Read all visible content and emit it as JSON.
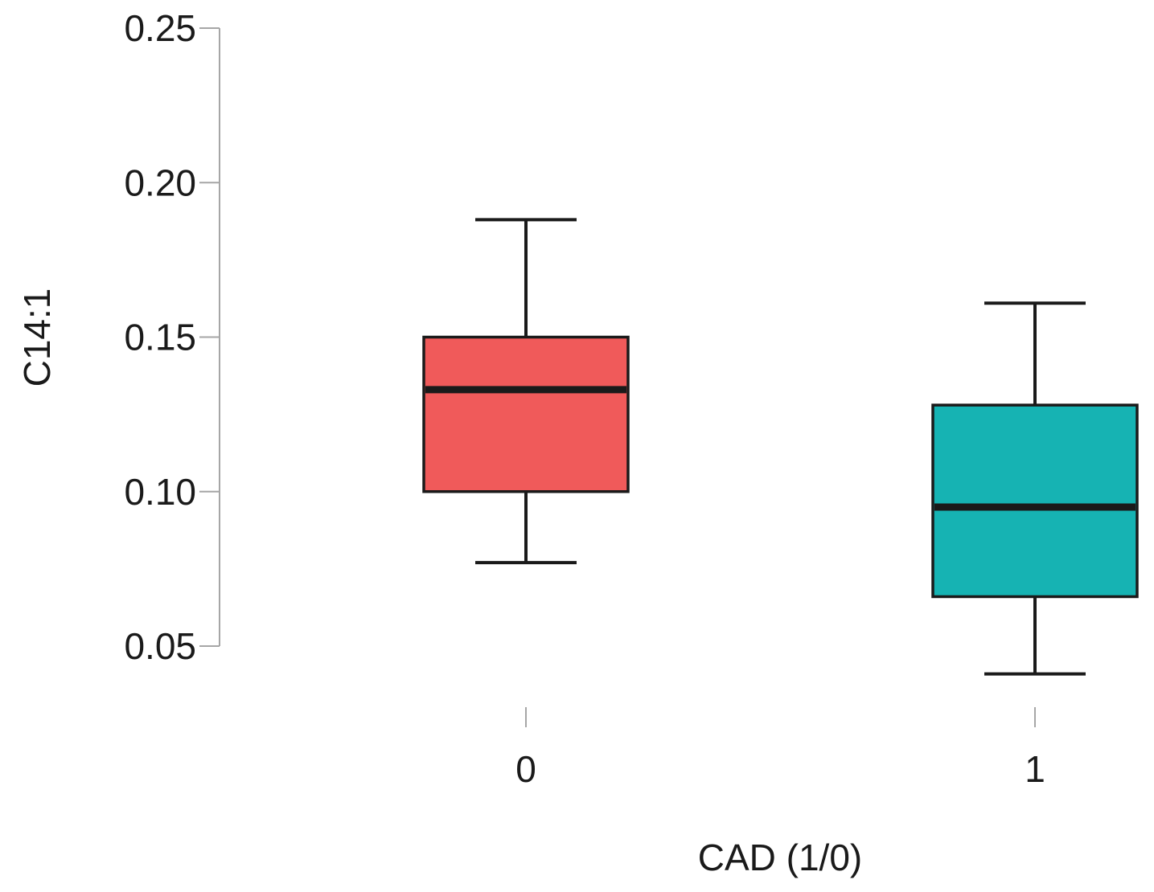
{
  "chart_data": {
    "type": "boxplot",
    "title": "",
    "xlabel": "CAD (1/0)",
    "ylabel": "C14:1",
    "ylim": [
      0.05,
      0.25
    ],
    "yticks": [
      "0.05",
      "0.10",
      "0.15",
      "0.20",
      "0.25"
    ],
    "ytick_values": [
      0.05,
      0.1,
      0.15,
      0.2,
      0.25
    ],
    "categories": [
      "0",
      "1"
    ],
    "boxes": [
      {
        "category": "0",
        "whisker_low": 0.077,
        "q1": 0.1,
        "median": 0.133,
        "q3": 0.15,
        "whisker_high": 0.188,
        "color": "#f05a5a"
      },
      {
        "category": "1",
        "whisker_low": 0.041,
        "q1": 0.066,
        "median": 0.095,
        "q3": 0.128,
        "whisker_high": 0.161,
        "color": "#16b3b3"
      }
    ],
    "grid": false
  }
}
